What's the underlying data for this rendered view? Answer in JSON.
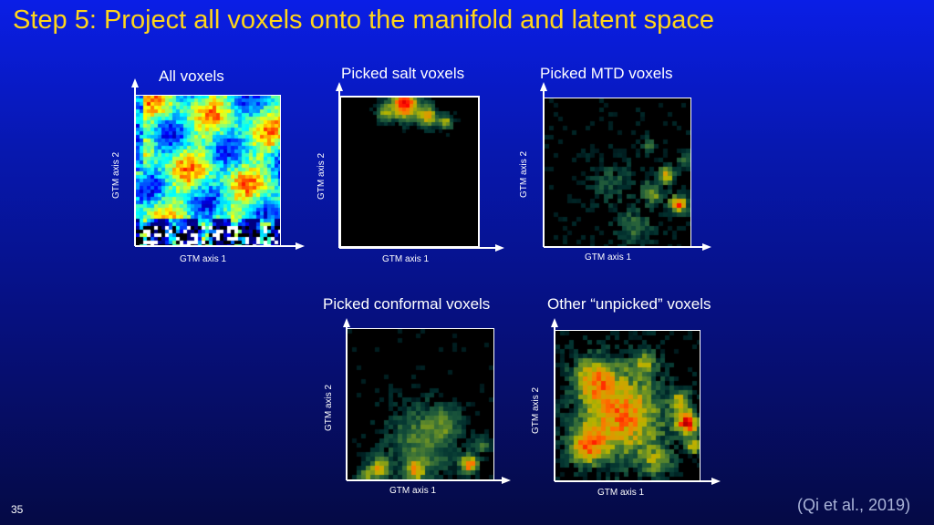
{
  "slide": {
    "title": "Step 5: Project all voxels onto the manifold and latent space",
    "page_number": "35",
    "citation": "(Qi et al., 2019)"
  },
  "panels": [
    {
      "id": "all",
      "title": "All voxels",
      "xlabel": "GTM axis 1",
      "ylabel": "GTM axis 2"
    },
    {
      "id": "salt",
      "title": "Picked salt voxels",
      "xlabel": "GTM axis 1",
      "ylabel": "GTM axis 2"
    },
    {
      "id": "mtd",
      "title": "Picked MTD voxels",
      "xlabel": "GTM axis 1",
      "ylabel": "GTM axis 2"
    },
    {
      "id": "conformal",
      "title": "Picked conformal voxels",
      "xlabel": "GTM axis 1",
      "ylabel": "GTM axis 2"
    },
    {
      "id": "unpicked",
      "title": "Other “unpicked” voxels",
      "xlabel": "GTM axis 1",
      "ylabel": "GTM axis 2"
    }
  ],
  "colors": {
    "background_top": "#0a1ee6",
    "background_bottom": "#050a45",
    "title": "#ffd51a",
    "citation": "#aab4d8",
    "density_low": "#000000",
    "density_mid": "#1e5aff",
    "density_high": "#ff1e1e"
  }
}
